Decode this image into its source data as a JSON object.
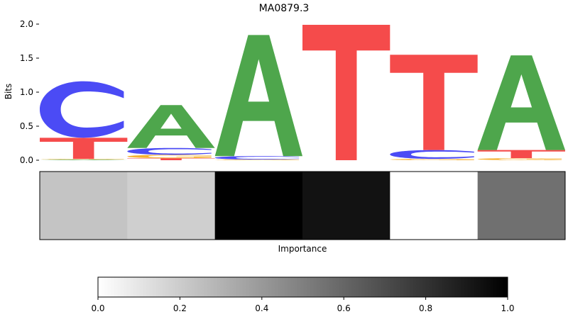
{
  "chart_data": [
    {
      "type": "sequence-logo",
      "title": "MA0879.3",
      "ylabel": "Bits",
      "ylim": [
        0,
        2.0
      ],
      "yticks": [
        "0.0",
        "0.5",
        "1.0",
        "1.5",
        "2.0"
      ],
      "colors": {
        "A": "#4ea64c",
        "C": "#4b4bf5",
        "G": "#f5b233",
        "T": "#f54b4b"
      },
      "positions": [
        {
          "letters": [
            {
              "base": "A",
              "bits": 0.01
            },
            {
              "base": "G",
              "bits": 0.01
            },
            {
              "base": "T",
              "bits": 0.31
            },
            {
              "base": "C",
              "bits": 0.83
            }
          ]
        },
        {
          "letters": [
            {
              "base": "T",
              "bits": 0.03
            },
            {
              "base": "G",
              "bits": 0.05
            },
            {
              "base": "C",
              "bits": 0.1
            },
            {
              "base": "A",
              "bits": 0.63
            }
          ]
        },
        {
          "letters": [
            {
              "base": "G",
              "bits": 0.01
            },
            {
              "base": "C",
              "bits": 0.05
            },
            {
              "base": "A",
              "bits": 1.78
            }
          ]
        },
        {
          "letters": [
            {
              "base": "T",
              "bits": 1.99
            }
          ]
        },
        {
          "letters": [
            {
              "base": "G",
              "bits": 0.02
            },
            {
              "base": "C",
              "bits": 0.13
            },
            {
              "base": "T",
              "bits": 1.4
            }
          ]
        },
        {
          "letters": [
            {
              "base": "G",
              "bits": 0.03
            },
            {
              "base": "T",
              "bits": 0.12
            },
            {
              "base": "A",
              "bits": 1.39
            }
          ]
        }
      ]
    },
    {
      "type": "heatmap",
      "xlabel": "Importance",
      "values": [
        0.23,
        0.19,
        1.0,
        0.93,
        0.0,
        0.56
      ],
      "colormap": "Greys",
      "colorbar": {
        "ticks": [
          "0.0",
          "0.2",
          "0.4",
          "0.6",
          "0.8",
          "1.0"
        ],
        "range": [
          0,
          1
        ]
      }
    }
  ]
}
